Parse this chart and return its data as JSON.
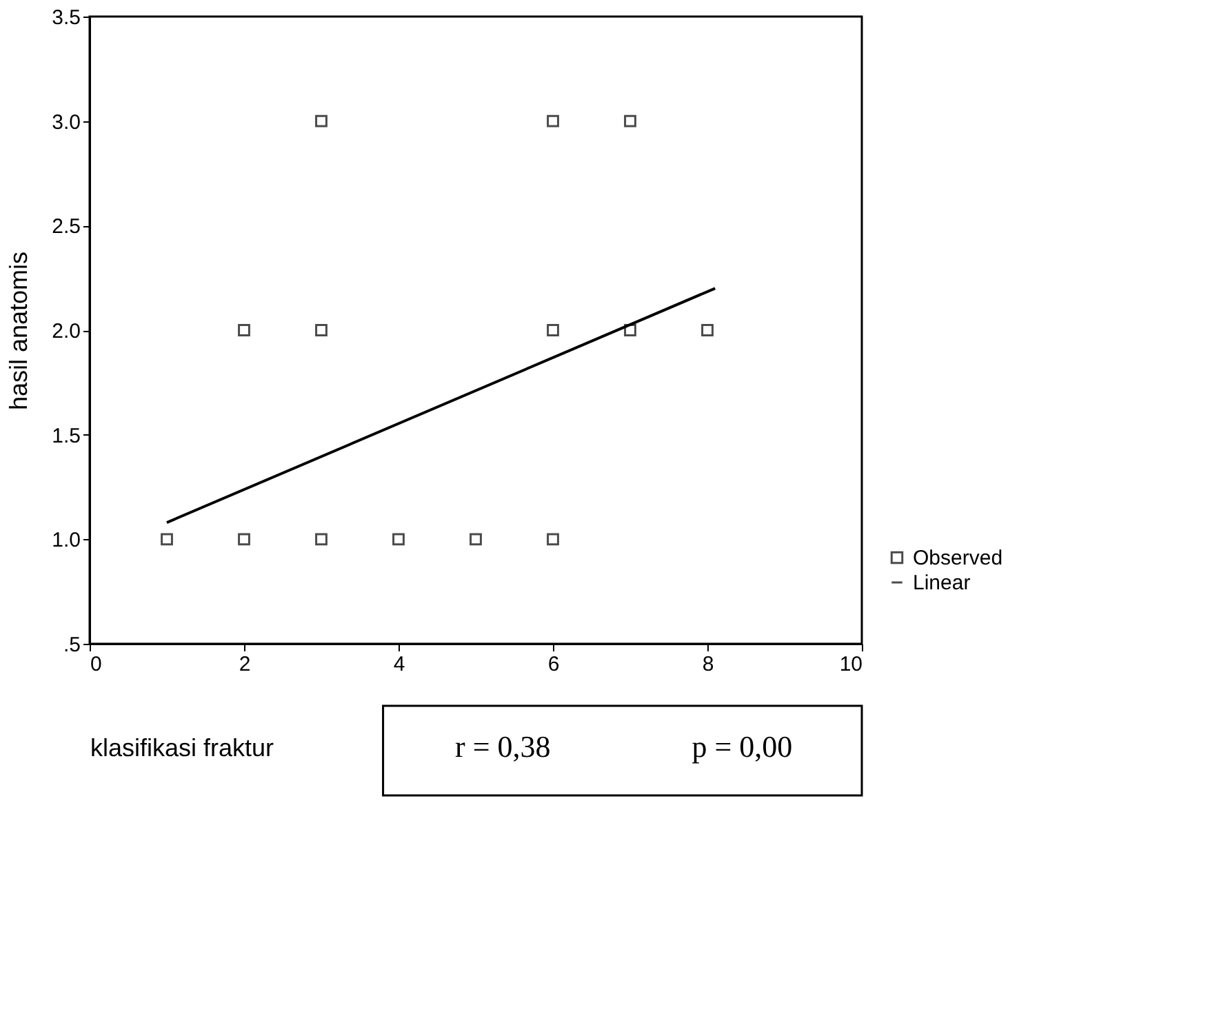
{
  "chart_data": {
    "type": "scatter",
    "xlabel": "klasifikasi fraktur",
    "ylabel": "hasil anatomis",
    "series": [
      {
        "name": "Observed",
        "marker": "square",
        "color": "#000000",
        "x": [
          3,
          6,
          7,
          2,
          3,
          6,
          7,
          8,
          1,
          2,
          3,
          4,
          5,
          6
        ],
        "values": [
          3,
          3,
          3,
          2,
          2,
          2,
          2,
          2,
          1,
          1,
          1,
          1,
          1,
          1
        ]
      },
      {
        "name": "Linear",
        "type": "line",
        "marker": "none",
        "line_style": "solid",
        "color": "#000000",
        "x": [
          1,
          8.1
        ],
        "values": [
          1.08,
          2.2
        ]
      }
    ],
    "xlim": [
      0,
      10
    ],
    "xticks": [
      0,
      2,
      4,
      6,
      8,
      10
    ],
    "ylim": [
      0.5,
      3.5
    ],
    "yticks": [
      {
        "value": 0.5,
        "label": ".5"
      },
      {
        "value": 1,
        "label": "1.0"
      },
      {
        "value": 1.5,
        "label": "1.5"
      },
      {
        "value": 2,
        "label": "2.0"
      },
      {
        "value": 2.5,
        "label": "2.5"
      },
      {
        "value": 3,
        "label": "3.0"
      },
      {
        "value": 3.5,
        "label": "3.5"
      }
    ],
    "grid": false,
    "legend": "right",
    "annotations": [
      "r = 0,38",
      "p = 0,00"
    ]
  }
}
